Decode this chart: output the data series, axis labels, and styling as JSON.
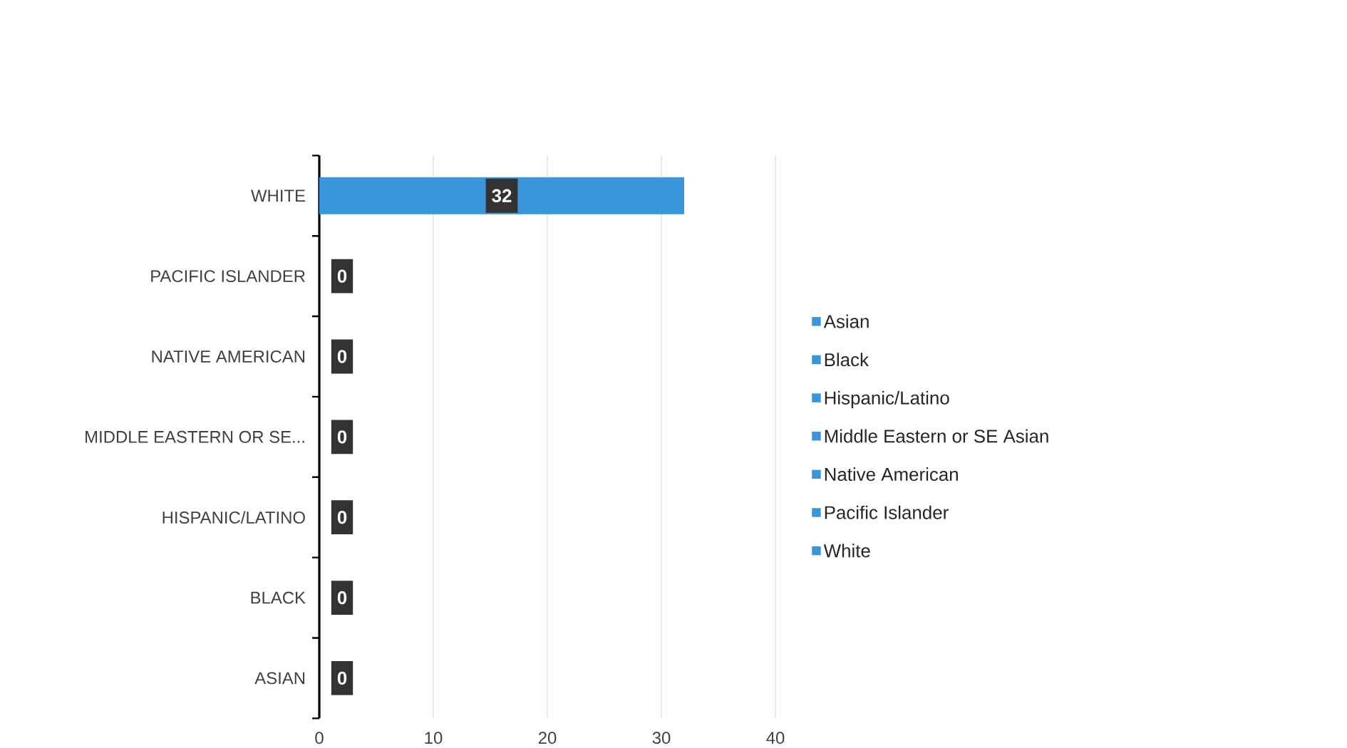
{
  "chart_data": {
    "type": "bar",
    "orientation": "horizontal",
    "categories": [
      "WHITE",
      "PACIFIC ISLANDER",
      "NATIVE AMERICAN",
      "MIDDLE EASTERN OR SE...",
      "HISPANIC/LATINO",
      "BLACK",
      "ASIAN"
    ],
    "series": [
      {
        "name": "Asian",
        "color": "#3a96db",
        "values": [
          null,
          null,
          null,
          null,
          null,
          null,
          0
        ]
      },
      {
        "name": "Black",
        "color": "#3a96db",
        "values": [
          null,
          null,
          null,
          null,
          null,
          0,
          null
        ]
      },
      {
        "name": "Hispanic/Latino",
        "color": "#3a96db",
        "values": [
          null,
          null,
          null,
          null,
          0,
          null,
          null
        ]
      },
      {
        "name": "Middle Eastern or SE Asian",
        "color": "#3a96db",
        "values": [
          null,
          null,
          null,
          0,
          null,
          null,
          null
        ]
      },
      {
        "name": "Native American",
        "color": "#3a96db",
        "values": [
          null,
          null,
          0,
          null,
          null,
          null,
          null
        ]
      },
      {
        "name": "Pacific Islander",
        "color": "#3a96db",
        "values": [
          null,
          0,
          null,
          null,
          null,
          null,
          null
        ]
      },
      {
        "name": "White",
        "color": "#3a96db",
        "values": [
          32,
          null,
          null,
          null,
          null,
          null,
          null
        ]
      }
    ],
    "xlim": [
      0,
      40
    ],
    "xticks": [
      0,
      10,
      20,
      30,
      40
    ],
    "grid": "x",
    "legend": "right",
    "data_labels": true
  }
}
